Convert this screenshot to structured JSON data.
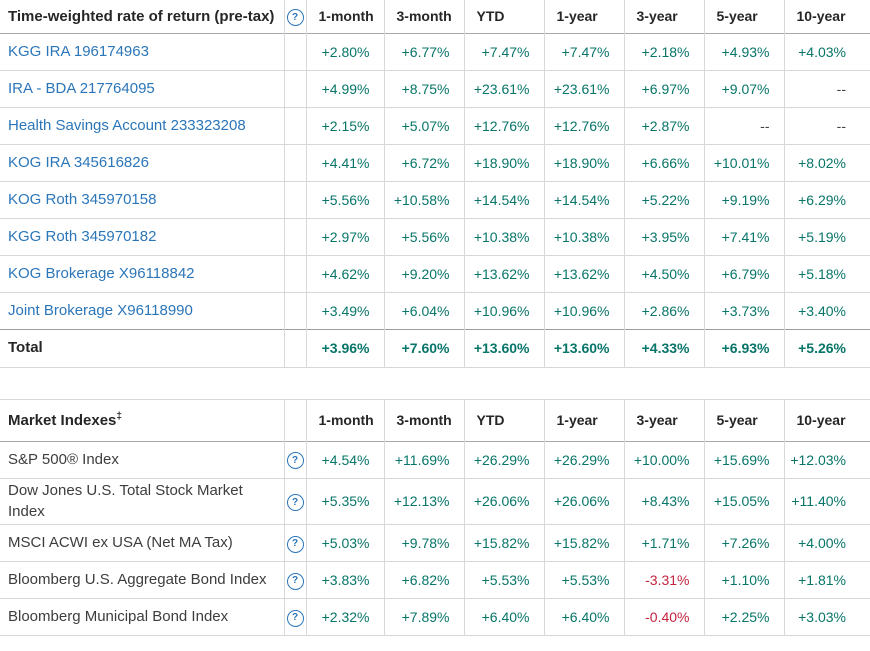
{
  "colors": {
    "positive": "#077568",
    "negative": "#c3223e",
    "link": "#2b76b9",
    "header_text": "#262626",
    "row_border": "#d7d7d7",
    "header_border": "#a9a9a9"
  },
  "columns": [
    "1-month",
    "3-month",
    "YTD",
    "1-year",
    "3-year",
    "5-year",
    "10-year"
  ],
  "help_icon_glyph": "?",
  "accounts_table": {
    "title": "Time-weighted rate of return (pre-tax)",
    "rows": [
      {
        "name": "KGG IRA 196174963",
        "values": [
          "+2.80%",
          "+6.77%",
          "+7.47%",
          "+7.47%",
          "+2.18%",
          "+4.93%",
          "+4.03%"
        ]
      },
      {
        "name": "IRA - BDA 217764095",
        "values": [
          "+4.99%",
          "+8.75%",
          "+23.61%",
          "+23.61%",
          "+6.97%",
          "+9.07%",
          "--"
        ]
      },
      {
        "name": "Health Savings Account 233323208",
        "values": [
          "+2.15%",
          "+5.07%",
          "+12.76%",
          "+12.76%",
          "+2.87%",
          "--",
          "--"
        ]
      },
      {
        "name": "KOG IRA 345616826",
        "values": [
          "+4.41%",
          "+6.72%",
          "+18.90%",
          "+18.90%",
          "+6.66%",
          "+10.01%",
          "+8.02%"
        ]
      },
      {
        "name": "KOG Roth 345970158",
        "values": [
          "+5.56%",
          "+10.58%",
          "+14.54%",
          "+14.54%",
          "+5.22%",
          "+9.19%",
          "+6.29%"
        ]
      },
      {
        "name": "KGG Roth 345970182",
        "values": [
          "+2.97%",
          "+5.56%",
          "+10.38%",
          "+10.38%",
          "+3.95%",
          "+7.41%",
          "+5.19%"
        ]
      },
      {
        "name": "KOG Brokerage X96118842",
        "values": [
          "+4.62%",
          "+9.20%",
          "+13.62%",
          "+13.62%",
          "+4.50%",
          "+6.79%",
          "+5.18%"
        ]
      },
      {
        "name": "Joint Brokerage X96118990",
        "values": [
          "+3.49%",
          "+6.04%",
          "+10.96%",
          "+10.96%",
          "+2.86%",
          "+3.73%",
          "+3.40%"
        ]
      }
    ],
    "total": {
      "label": "Total",
      "values": [
        "+3.96%",
        "+7.60%",
        "+13.60%",
        "+13.60%",
        "+4.33%",
        "+6.93%",
        "+5.26%"
      ]
    }
  },
  "indexes_table": {
    "title": "Market Indexes",
    "title_superscript": "‡",
    "rows": [
      {
        "name": "S&P 500® Index",
        "values": [
          "+4.54%",
          "+11.69%",
          "+26.29%",
          "+26.29%",
          "+10.00%",
          "+15.69%",
          "+12.03%"
        ]
      },
      {
        "name": "Dow Jones U.S. Total Stock Market Index",
        "values": [
          "+5.35%",
          "+12.13%",
          "+26.06%",
          "+26.06%",
          "+8.43%",
          "+15.05%",
          "+11.40%"
        ]
      },
      {
        "name": "MSCI ACWI ex USA (Net MA Tax)",
        "values": [
          "+5.03%",
          "+9.78%",
          "+15.82%",
          "+15.82%",
          "+1.71%",
          "+7.26%",
          "+4.00%"
        ]
      },
      {
        "name": "Bloomberg U.S. Aggregate Bond Index",
        "values": [
          "+3.83%",
          "+6.82%",
          "+5.53%",
          "+5.53%",
          "-3.31%",
          "+1.10%",
          "+1.81%"
        ]
      },
      {
        "name": "Bloomberg Municipal Bond Index",
        "values": [
          "+2.32%",
          "+7.89%",
          "+6.40%",
          "+6.40%",
          "-0.40%",
          "+2.25%",
          "+3.03%"
        ]
      }
    ]
  }
}
